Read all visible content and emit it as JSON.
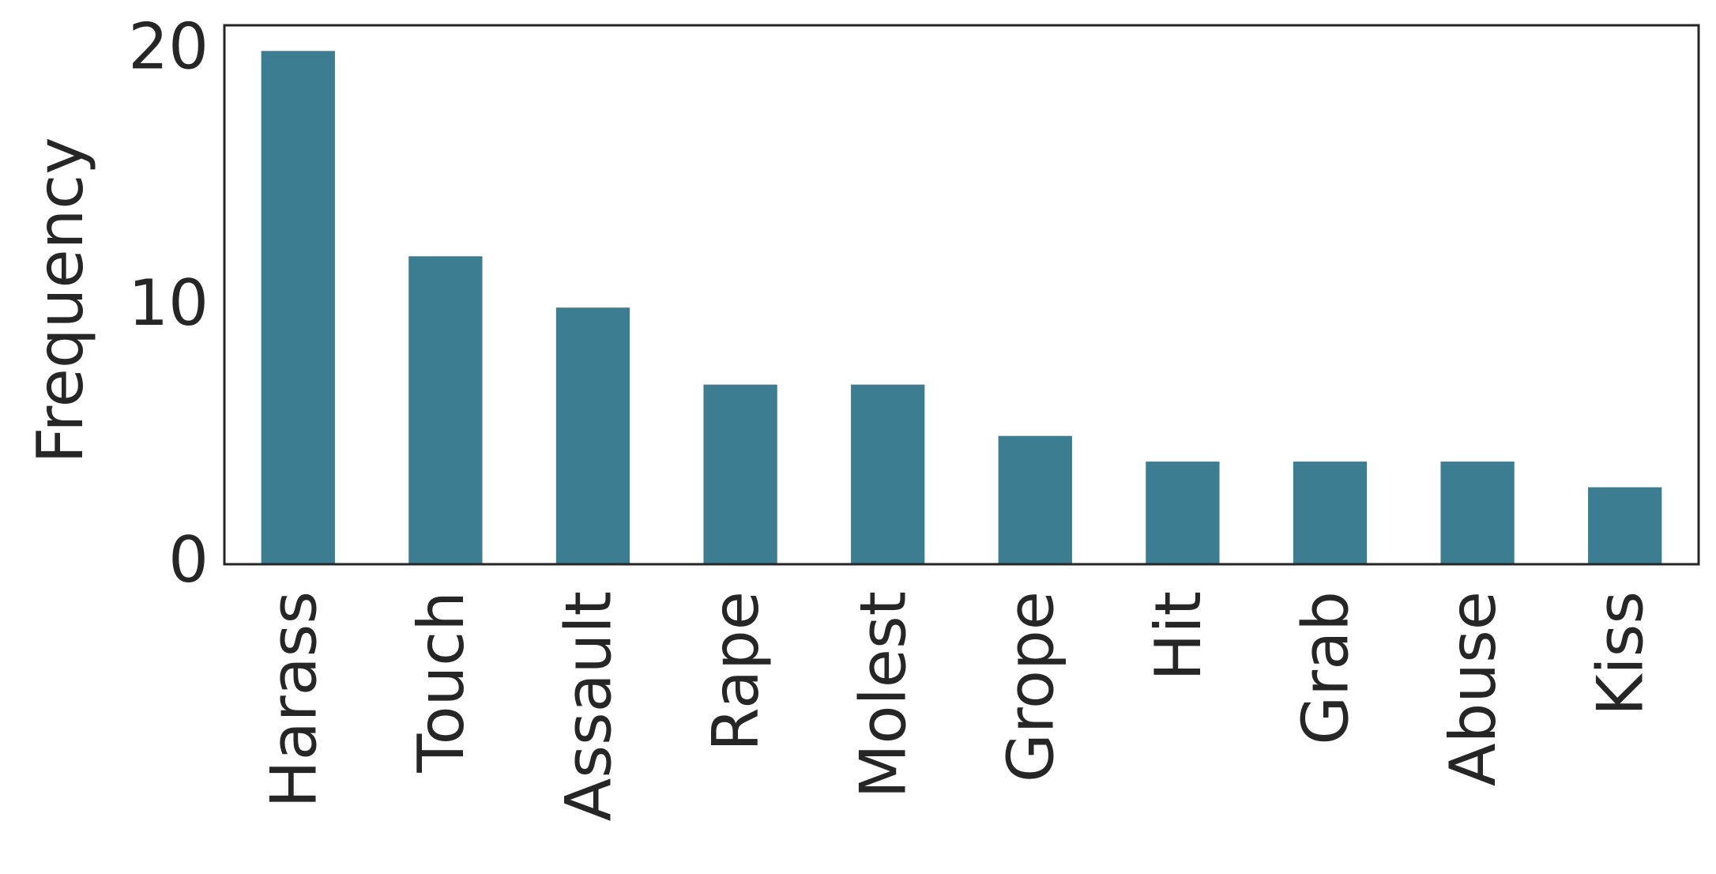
{
  "chart_data": {
    "type": "bar",
    "y_label": "Frequency",
    "categories": [
      "Harass",
      "Touch",
      "Assault",
      "Rape",
      "Molest",
      "Grope",
      "Hit",
      "Grab",
      "Abuse",
      "Kiss"
    ],
    "values": [
      20,
      12,
      10,
      7,
      7,
      5,
      4,
      4,
      4,
      3
    ],
    "color": "#3d7d91",
    "ylim": [
      0,
      21
    ],
    "yticks": [
      0,
      10,
      20
    ],
    "grid": false
  }
}
